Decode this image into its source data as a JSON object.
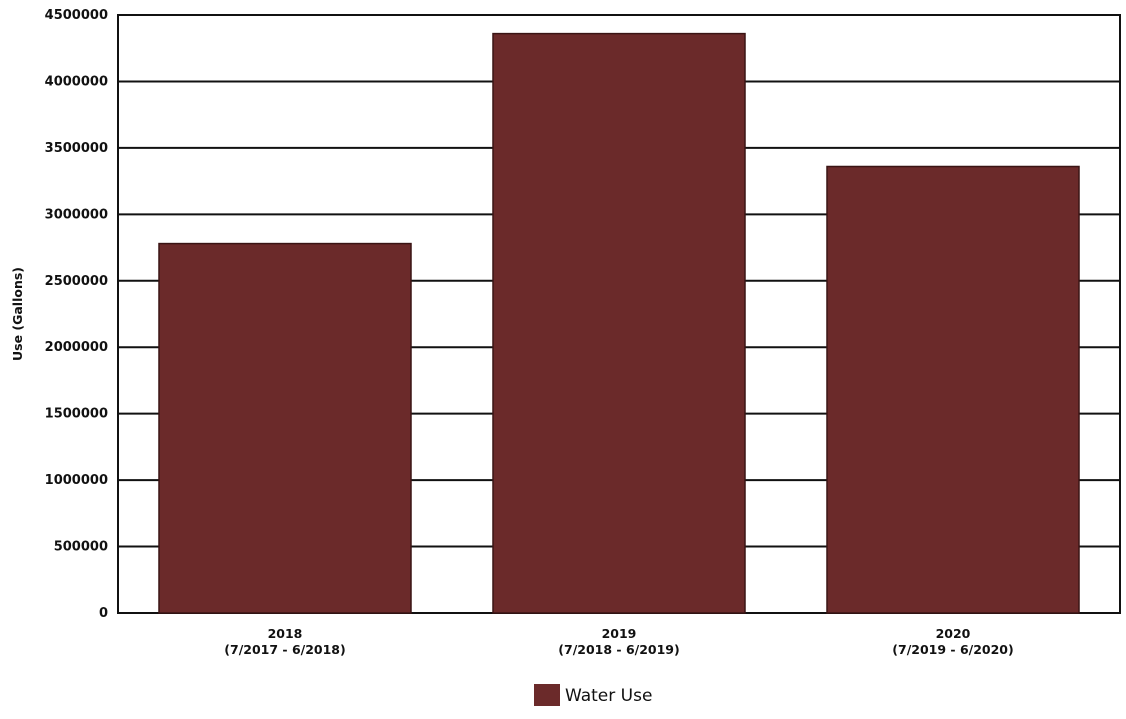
{
  "chart_data": {
    "type": "bar",
    "title": "",
    "xlabel": "",
    "ylabel": "Use (Gallons)",
    "ylim": [
      0,
      4500000
    ],
    "yticks": [
      0,
      500000,
      1000000,
      1500000,
      2000000,
      2500000,
      3000000,
      3500000,
      4000000,
      4500000
    ],
    "ytick_labels": [
      "0",
      "500000",
      "1000000",
      "1500000",
      "2000000",
      "2500000",
      "3000000",
      "3500000",
      "4000000",
      "4500000"
    ],
    "categories": [
      {
        "line1": "2018",
        "line2": "(7/2017 - 6/2018)"
      },
      {
        "line1": "2019",
        "line2": "(7/2018 - 6/2019)"
      },
      {
        "line1": "2020",
        "line2": "(7/2019 - 6/2020)"
      }
    ],
    "series": [
      {
        "name": "Water Use",
        "color": "#6b2a2a",
        "values": [
          2780000,
          4360000,
          3360000
        ]
      }
    ],
    "grid": true,
    "legend_position": "bottom"
  }
}
